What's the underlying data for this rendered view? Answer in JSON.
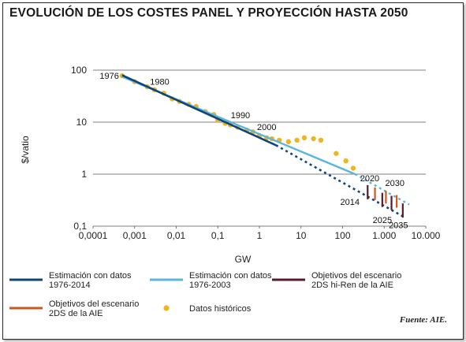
{
  "title": "EVOLUCIÓN DE LOS COSTES PANEL Y PROYECCIÓN HASTA 2050",
  "source": "Fuente: AIE.",
  "colors": {
    "est_2014": "#0f4677",
    "est_2003": "#5ab4e0",
    "obj_hiren": "#5a1a2e",
    "obj_2ds": "#c95a1e",
    "historicos": "#f0b41e",
    "grid": "#555555"
  },
  "chart_data": {
    "type": "scatter",
    "title": "EVOLUCIÓN DE LOS COSTES PANEL Y PROYECCIÓN HASTA 2050",
    "xlabel": "GW",
    "ylabel": "$/vatio",
    "x_scale": "log",
    "y_scale": "log",
    "xlim": [
      0.0001,
      10000
    ],
    "ylim": [
      0.1,
      100
    ],
    "x_ticks": [
      "0,0001",
      "0,001",
      "0,01",
      "0,1",
      "1",
      "10",
      "100",
      "1.000",
      "10.000"
    ],
    "y_ticks": [
      "0,1",
      "1",
      "10",
      "100"
    ],
    "grid": "horizontal",
    "legend_position": "bottom",
    "series": [
      {
        "name": "Estimación con datos 1976-2014",
        "style": "line",
        "x": [
          0.0005,
          2.5
        ],
        "y": [
          80,
          3.6
        ],
        "extension_dotted": {
          "x": [
            2.5,
            3000
          ],
          "y": [
            3.6,
            0.15
          ]
        }
      },
      {
        "name": "Estimación con datos 1976-2003",
        "style": "line",
        "x": [
          0.0005,
          200
        ],
        "y": [
          75,
          1.0
        ],
        "extension_dotted": {
          "x": [
            200,
            4000
          ],
          "y": [
            1.0,
            0.26
          ]
        }
      },
      {
        "name": "Objetivos del escenario 2DS hi-Ren de la AIE",
        "style": "marks",
        "x": [
          400,
          900,
          1500,
          2800
        ],
        "y": [
          0.45,
          0.32,
          0.28,
          0.2
        ]
      },
      {
        "name": "Objetivos del escenario 2DS de la AIE",
        "style": "marks",
        "x": [
          600,
          1100,
          2000
        ],
        "y": [
          0.42,
          0.36,
          0.3
        ]
      },
      {
        "name": "Datos históricos",
        "style": "points",
        "x": [
          0.0005,
          0.001,
          0.002,
          0.003,
          0.005,
          0.008,
          0.012,
          0.02,
          0.03,
          0.05,
          0.08,
          0.1,
          0.15,
          0.2,
          0.3,
          0.5,
          0.7,
          1.0,
          1.5,
          2.0,
          3.0,
          5.0,
          8.0,
          12.0,
          20.0,
          30.0,
          70.0,
          120.0,
          180.0
        ],
        "y": [
          78,
          60,
          48,
          42,
          36,
          28,
          25,
          22,
          20,
          16,
          14,
          11,
          9.5,
          8.8,
          8,
          7,
          6.5,
          5.5,
          5.0,
          4.8,
          4.5,
          4.2,
          4.5,
          5.0,
          4.8,
          4.5,
          2.5,
          1.8,
          1.3
        ]
      }
    ],
    "annotations": [
      {
        "text": "1976",
        "x": 0.0005,
        "y": 78,
        "pos": "left"
      },
      {
        "text": "1980",
        "x": 0.004,
        "y": 40,
        "pos": "above"
      },
      {
        "text": "1990",
        "x": 0.35,
        "y": 9,
        "pos": "above"
      },
      {
        "text": "2000",
        "x": 1.5,
        "y": 5.3,
        "pos": "above"
      },
      {
        "text": "2014",
        "x": 150,
        "y": 0.45,
        "pos": "below"
      },
      {
        "text": "2020",
        "x": 450,
        "y": 0.55,
        "pos": "above"
      },
      {
        "text": "2030",
        "x": 1800,
        "y": 0.45,
        "pos": "above"
      },
      {
        "text": "2025",
        "x": 900,
        "y": 0.2,
        "pos": "below"
      },
      {
        "text": "2035",
        "x": 2200,
        "y": 0.16,
        "pos": "below"
      }
    ]
  }
}
